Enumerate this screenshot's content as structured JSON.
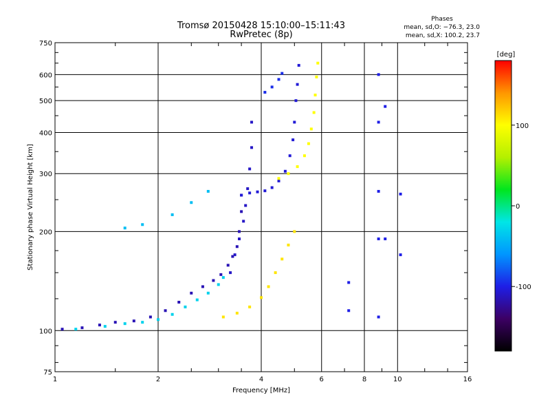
{
  "chart_data": {
    "type": "scatter",
    "title": "Tromsø 20150428 15:10:00–15:11:43",
    "subtitle": "RwPretec (8p)",
    "xlabel": "Frequency [MHz]",
    "ylabel": "Stationary phase Virtual Height [km]",
    "x_scale": "log",
    "y_scale": "log",
    "xlim": [
      1,
      16
    ],
    "ylim": [
      75,
      750
    ],
    "x_ticks": [
      1,
      2,
      4,
      6,
      8,
      10,
      16
    ],
    "y_ticks": [
      75,
      100,
      200,
      300,
      400,
      500,
      600,
      750
    ],
    "grid": true,
    "stats_header": "Phases",
    "stats": [
      "mean, sd,O: −76.3, 23.0",
      "mean, sd,X: 100.2, 23.7"
    ],
    "colorbar": {
      "label": "[deg]",
      "range": [
        -180,
        180
      ],
      "ticks": [
        100,
        0,
        -100
      ],
      "colors": [
        "#000000",
        "#3c0064",
        "#1e1ee6",
        "#0096ff",
        "#00e6e6",
        "#00e61e",
        "#b4f000",
        "#ffff00",
        "#ff9600",
        "#ff0000"
      ]
    },
    "traces": [
      {
        "name": "",
        "phase": -115,
        "points": [
          [
            1.05,
            101
          ],
          [
            1.2,
            102
          ],
          [
            1.35,
            104
          ],
          [
            1.5,
            106
          ],
          [
            1.7,
            107
          ],
          [
            1.9,
            110
          ],
          [
            2.1,
            115
          ],
          [
            2.3,
            122
          ],
          [
            2.5,
            130
          ],
          [
            2.7,
            136
          ],
          [
            2.9,
            142
          ],
          [
            3.05,
            148
          ],
          [
            3.2,
            158
          ],
          [
            3.3,
            168
          ],
          [
            3.4,
            180
          ],
          [
            3.45,
            200
          ],
          [
            3.5,
            230
          ],
          [
            3.5,
            258
          ]
        ]
      },
      {
        "name": "",
        "phase": -30,
        "points": [
          [
            1.15,
            101
          ],
          [
            1.4,
            103
          ],
          [
            1.6,
            105
          ],
          [
            1.8,
            106
          ],
          [
            2.0,
            108
          ],
          [
            2.2,
            112
          ],
          [
            2.4,
            118
          ],
          [
            2.6,
            124
          ],
          [
            2.8,
            130
          ],
          [
            3.0,
            138
          ],
          [
            3.1,
            145
          ]
        ]
      },
      {
        "name": "",
        "phase": -105,
        "points": [
          [
            3.5,
            258
          ],
          [
            3.7,
            262
          ],
          [
            3.9,
            264
          ],
          [
            4.1,
            266
          ],
          [
            4.3,
            272
          ],
          [
            4.5,
            285
          ],
          [
            4.7,
            305
          ],
          [
            4.85,
            340
          ],
          [
            4.95,
            380
          ],
          [
            5.0,
            430
          ],
          [
            5.05,
            500
          ],
          [
            5.1,
            560
          ],
          [
            5.15,
            640
          ]
        ]
      },
      {
        "name": "",
        "phase": -110,
        "points": [
          [
            3.25,
            150
          ],
          [
            3.35,
            170
          ],
          [
            3.45,
            190
          ],
          [
            3.55,
            215
          ],
          [
            3.6,
            240
          ],
          [
            3.65,
            270
          ],
          [
            3.7,
            310
          ],
          [
            3.75,
            360
          ],
          [
            3.75,
            430
          ]
        ]
      },
      {
        "name": "",
        "phase": 110,
        "points": [
          [
            3.1,
            110
          ],
          [
            3.4,
            113
          ],
          [
            3.7,
            118
          ],
          [
            4.0,
            126
          ],
          [
            4.2,
            136
          ],
          [
            4.4,
            150
          ],
          [
            4.6,
            165
          ],
          [
            4.8,
            182
          ],
          [
            5.0,
            200
          ]
        ]
      },
      {
        "name": "",
        "phase": 100,
        "points": [
          [
            4.5,
            290
          ],
          [
            4.8,
            300
          ],
          [
            5.1,
            315
          ],
          [
            5.35,
            340
          ],
          [
            5.5,
            370
          ],
          [
            5.6,
            410
          ],
          [
            5.7,
            460
          ],
          [
            5.75,
            520
          ],
          [
            5.8,
            590
          ],
          [
            5.85,
            650
          ]
        ]
      },
      {
        "name": "",
        "phase": -95,
        "points": [
          [
            4.1,
            530
          ],
          [
            4.3,
            550
          ],
          [
            4.5,
            580
          ],
          [
            4.6,
            605
          ]
        ]
      },
      {
        "name": "",
        "phase": -40,
        "points": [
          [
            1.6,
            205
          ],
          [
            1.8,
            210
          ],
          [
            2.2,
            225
          ],
          [
            2.5,
            245
          ],
          [
            2.8,
            265
          ]
        ]
      },
      {
        "name": "",
        "phase": -100,
        "points": [
          [
            7.2,
            140
          ],
          [
            7.2,
            115
          ],
          [
            8.8,
            600
          ],
          [
            8.8,
            430
          ],
          [
            8.8,
            265
          ],
          [
            8.8,
            190
          ],
          [
            8.8,
            110
          ],
          [
            9.2,
            480
          ],
          [
            9.2,
            190
          ],
          [
            10.2,
            170
          ],
          [
            10.2,
            260
          ]
        ]
      }
    ]
  }
}
